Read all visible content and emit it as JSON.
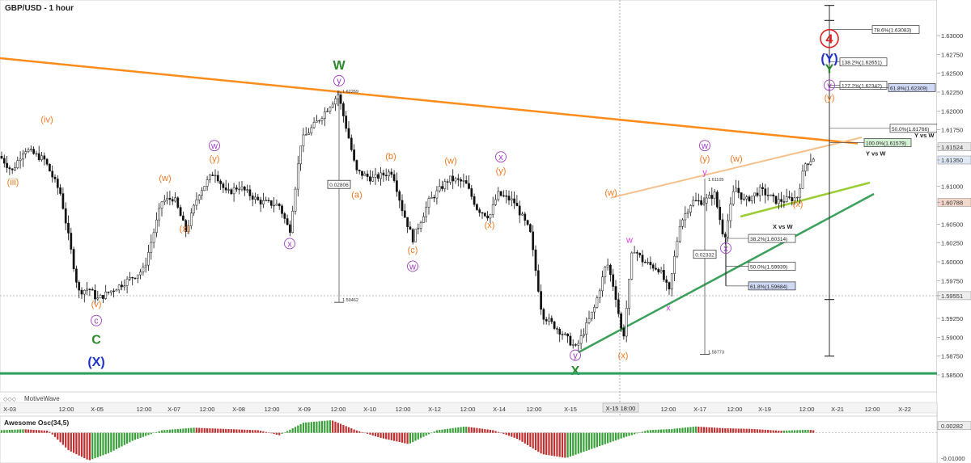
{
  "header": {
    "title": "GBP/USD - 1 hour",
    "watermark": "MotiveWave",
    "indicator_title": "Awesome Osc(34,5)"
  },
  "colors": {
    "bull": "#000000",
    "bear": "#000000",
    "resistance": "#ff8c1a",
    "channel_light": "#f7c08a",
    "support_green": "#3aa05a",
    "support_lime": "#9acd32",
    "bottom_line": "#2e9e5e",
    "wave_orange": "#f07820",
    "wave_purple": "#a040c0",
    "wave_green": "#2a8a2a",
    "wave_blue": "#1f33cc",
    "wave_red": "#e02020",
    "wave_magenta": "#e040e0",
    "osc_up": "#3aa03a",
    "osc_down": "#c03030"
  },
  "chart_data": {
    "type": "candlestick",
    "title": "GBP/USD - 1 hour",
    "ylim": [
      1.5835,
      1.6345
    ],
    "y_ticks": [
      "1.63000",
      "1.62750",
      "1.62500",
      "1.62250",
      "1.62000",
      "1.61750",
      "1.61524",
      "1.61350",
      "1.61000",
      "1.60788",
      "1.60500",
      "1.60250",
      "1.60000",
      "1.59750",
      "1.59551",
      "1.59250",
      "1.59000",
      "1.58750",
      "1.58500"
    ],
    "x_ticks": [
      "X-03",
      "12:00",
      "X-05",
      "12:00",
      "X-07",
      "12:00",
      "X-08",
      "12:00",
      "X-09",
      "12:00",
      "X-10",
      "12:00",
      "X-12",
      "12:00",
      "X-14",
      "12:00",
      "X-15",
      "12:00",
      "X-16",
      "12:00",
      "X-17",
      "12:00",
      "X-19",
      "12:00",
      "X-21",
      "12:00",
      "X-22"
    ],
    "crosshair_label": "X-15 18:00",
    "price_path": [
      [
        0,
        1.614
      ],
      [
        15,
        1.612
      ],
      [
        30,
        1.615
      ],
      [
        55,
        1.6135
      ],
      [
        75,
        1.609
      ],
      [
        97,
        1.596
      ],
      [
        110,
        1.5965
      ],
      [
        120,
        1.595
      ],
      [
        150,
        1.597
      ],
      [
        178,
        1.599
      ],
      [
        200,
        1.608
      ],
      [
        215,
        1.6085
      ],
      [
        230,
        1.604
      ],
      [
        245,
        1.609
      ],
      [
        265,
        1.612
      ],
      [
        280,
        1.609
      ],
      [
        295,
        1.61
      ],
      [
        320,
        1.608
      ],
      [
        345,
        1.6075
      ],
      [
        358,
        1.604
      ],
      [
        372,
        1.616
      ],
      [
        395,
        1.619
      ],
      [
        418,
        1.6222
      ],
      [
        432,
        1.616
      ],
      [
        440,
        1.612
      ],
      [
        460,
        1.611
      ],
      [
        485,
        1.612
      ],
      [
        497,
        1.607
      ],
      [
        510,
        1.603
      ],
      [
        530,
        1.608
      ],
      [
        555,
        1.611
      ],
      [
        575,
        1.6105
      ],
      [
        590,
        1.607
      ],
      [
        605,
        1.606
      ],
      [
        615,
        1.609
      ],
      [
        635,
        1.608
      ],
      [
        655,
        1.604
      ],
      [
        670,
        1.593
      ],
      [
        695,
        1.5905
      ],
      [
        712,
        1.5885
      ],
      [
        735,
        1.594
      ],
      [
        750,
        1.6
      ],
      [
        760,
        1.596
      ],
      [
        770,
        1.5895
      ],
      [
        782,
        1.602
      ],
      [
        795,
        1.6
      ],
      [
        815,
        1.599
      ],
      [
        827,
        1.596
      ],
      [
        840,
        1.605
      ],
      [
        855,
        1.608
      ],
      [
        870,
        1.608
      ],
      [
        883,
        1.609
      ],
      [
        895,
        1.603
      ],
      [
        908,
        1.61
      ],
      [
        920,
        1.608
      ],
      [
        940,
        1.6095
      ],
      [
        960,
        1.608
      ],
      [
        985,
        1.6085
      ],
      [
        995,
        1.613
      ],
      [
        1008,
        1.614
      ]
    ],
    "resistance_line": {
      "from": [
        0,
        1.627
      ],
      "to": [
        1060,
        1.6157
      ]
    },
    "upper_channel": {
      "from": [
        755,
        1.6085
      ],
      "to": [
        1065,
        1.6165
      ]
    },
    "support_line": {
      "from": [
        715,
        1.588
      ],
      "to": [
        1080,
        1.609
      ]
    },
    "support_line_2": {
      "from": [
        915,
        1.606
      ],
      "to": [
        1075,
        1.6105
      ]
    },
    "horizontal_support": 1.5852,
    "current_price": "1.61524",
    "other_prices": [
      "1.61350",
      "1.60788",
      "1.59551"
    ],
    "measurements": [
      {
        "value": "0.02806",
        "top": "1.62269",
        "bottom": "1.59462"
      },
      {
        "value": "0.02332",
        "top": "1.61105",
        "bottom": "1.58773"
      }
    ],
    "fib_levels_upper": [
      {
        "label": "78.6%(1.63083)",
        "y": 1.6308
      },
      {
        "label": "138.2%(1.62651)",
        "y": 1.6265
      },
      {
        "label": "127.2%(1.62342)",
        "y": 1.6234
      },
      {
        "label": "61.8%(1.62309)",
        "y": 1.6231
      },
      {
        "label": "50.0%(1.61766)",
        "y": 1.6177
      },
      {
        "label": "100.0%(1.61579)",
        "y": 1.6158
      }
    ],
    "fib_levels_lower": [
      {
        "label": "38.2%(1.60314)",
        "y": 1.6031
      },
      {
        "label": "50.0%(1.59939)",
        "y": 1.5994
      },
      {
        "label": "61.8%(1.59684)",
        "y": 1.5968
      }
    ],
    "annotations": {
      "y_vs_w_1": "Y vs W",
      "y_vs_w_2": "Y vs W",
      "x_vs_w": "X vs W"
    },
    "wave_labels": [
      {
        "t": "(iii)",
        "x": 16,
        "y": 1.6102,
        "c": "wave_orange"
      },
      {
        "t": "(iv)",
        "x": 58,
        "y": 1.6185,
        "c": "wave_orange"
      },
      {
        "t": "(v)",
        "x": 119,
        "y": 1.594,
        "c": "wave_orange"
      },
      {
        "t": "c",
        "x": 119,
        "y": 1.5918,
        "c": "wave_purple",
        "circle": true
      },
      {
        "t": "C",
        "x": 119,
        "y": 1.5891,
        "c": "wave_green",
        "big": true
      },
      {
        "t": "(X)",
        "x": 119,
        "y": 1.5862,
        "c": "wave_blue",
        "big": true
      },
      {
        "t": "(w)",
        "x": 204,
        "y": 1.6107,
        "c": "wave_orange"
      },
      {
        "t": "(x)",
        "x": 228,
        "y": 1.604,
        "c": "wave_orange"
      },
      {
        "t": "w",
        "x": 265,
        "y": 1.615,
        "c": "wave_purple",
        "circle": true
      },
      {
        "t": "(y)",
        "x": 265,
        "y": 1.6133,
        "c": "wave_orange"
      },
      {
        "t": "x",
        "x": 358,
        "y": 1.602,
        "c": "wave_purple",
        "circle": true
      },
      {
        "t": "W",
        "x": 419,
        "y": 1.6255,
        "c": "wave_green",
        "big": true
      },
      {
        "t": "y",
        "x": 419,
        "y": 1.6236,
        "c": "wave_purple",
        "circle": true
      },
      {
        "t": "(a)",
        "x": 441,
        "y": 1.6085,
        "c": "wave_orange"
      },
      {
        "t": "(b)",
        "x": 483,
        "y": 1.6136,
        "c": "wave_orange"
      },
      {
        "t": "(c)",
        "x": 510,
        "y": 1.6012,
        "c": "wave_orange"
      },
      {
        "t": "w",
        "x": 510,
        "y": 1.599,
        "c": "wave_purple",
        "circle": true
      },
      {
        "t": "(w)",
        "x": 557,
        "y": 1.613,
        "c": "wave_orange"
      },
      {
        "t": "x",
        "x": 619,
        "y": 1.6135,
        "c": "wave_purple",
        "circle": true
      },
      {
        "t": "(y)",
        "x": 619,
        "y": 1.6117,
        "c": "wave_orange"
      },
      {
        "t": "(x)",
        "x": 605,
        "y": 1.6045,
        "c": "wave_orange"
      },
      {
        "t": "(w)",
        "x": 755,
        "y": 1.6088,
        "c": "wave_orange"
      },
      {
        "t": "y",
        "x": 711,
        "y": 1.5872,
        "c": "wave_purple",
        "circle": true
      },
      {
        "t": "X",
        "x": 711,
        "y": 1.585,
        "c": "wave_green",
        "big": true
      },
      {
        "t": "(x)",
        "x": 770,
        "y": 1.5872,
        "c": "wave_orange"
      },
      {
        "t": "w",
        "x": 778,
        "y": 1.6025,
        "c": "wave_magenta"
      },
      {
        "t": "x",
        "x": 826,
        "y": 1.5935,
        "c": "wave_magenta"
      },
      {
        "t": "w",
        "x": 871,
        "y": 1.615,
        "c": "wave_purple",
        "circle": true
      },
      {
        "t": "(y)",
        "x": 871,
        "y": 1.6133,
        "c": "wave_orange"
      },
      {
        "t": "y",
        "x": 871,
        "y": 1.6115,
        "c": "wave_magenta"
      },
      {
        "t": "(w)",
        "x": 910,
        "y": 1.6133,
        "c": "wave_orange"
      },
      {
        "t": "x",
        "x": 897,
        "y": 1.6014,
        "c": "wave_purple",
        "circle": true
      },
      {
        "t": "(x)",
        "x": 986,
        "y": 1.6073,
        "c": "wave_orange"
      },
      {
        "t": "4",
        "x": 1025,
        "y": 1.629,
        "c": "wave_red",
        "circle": true,
        "big": true
      },
      {
        "t": "(Y)",
        "x": 1025,
        "y": 1.6264,
        "c": "wave_blue",
        "big": true
      },
      {
        "t": "Y",
        "x": 1025,
        "y": 1.625,
        "c": "wave_green",
        "big": true
      },
      {
        "t": "y",
        "x": 1025,
        "y": 1.623,
        "c": "wave_purple",
        "circle": true
      },
      {
        "t": "(y)",
        "x": 1025,
        "y": 1.6214,
        "c": "wave_orange"
      }
    ],
    "osc_ylim": [
      -0.012,
      0.005
    ],
    "osc_ticks": [
      "0.00282",
      "-0.01000"
    ],
    "osc_phases": [
      [
        0,
        0.001
      ],
      [
        30,
        0.0014
      ],
      [
        60,
        0.0008
      ],
      [
        85,
        -0.007
      ],
      [
        110,
        -0.011
      ],
      [
        135,
        -0.008
      ],
      [
        165,
        -0.003
      ],
      [
        200,
        0.001
      ],
      [
        240,
        0.002
      ],
      [
        280,
        0.0015
      ],
      [
        320,
        0.001
      ],
      [
        345,
        -0.001
      ],
      [
        375,
        0.004
      ],
      [
        410,
        0.005
      ],
      [
        440,
        0.001
      ],
      [
        470,
        -0.002
      ],
      [
        505,
        -0.0045
      ],
      [
        540,
        0.001
      ],
      [
        575,
        0.0025
      ],
      [
        610,
        0.001
      ],
      [
        640,
        -0.0025
      ],
      [
        670,
        -0.0085
      ],
      [
        700,
        -0.01
      ],
      [
        735,
        -0.006
      ],
      [
        770,
        -0.002
      ],
      [
        800,
        0.001
      ],
      [
        830,
        0.0015
      ],
      [
        860,
        0.0025
      ],
      [
        895,
        0.0018
      ],
      [
        930,
        0.0015
      ],
      [
        965,
        0.0008
      ],
      [
        1000,
        0.0012
      ],
      [
        1010,
        0.0008
      ]
    ]
  }
}
